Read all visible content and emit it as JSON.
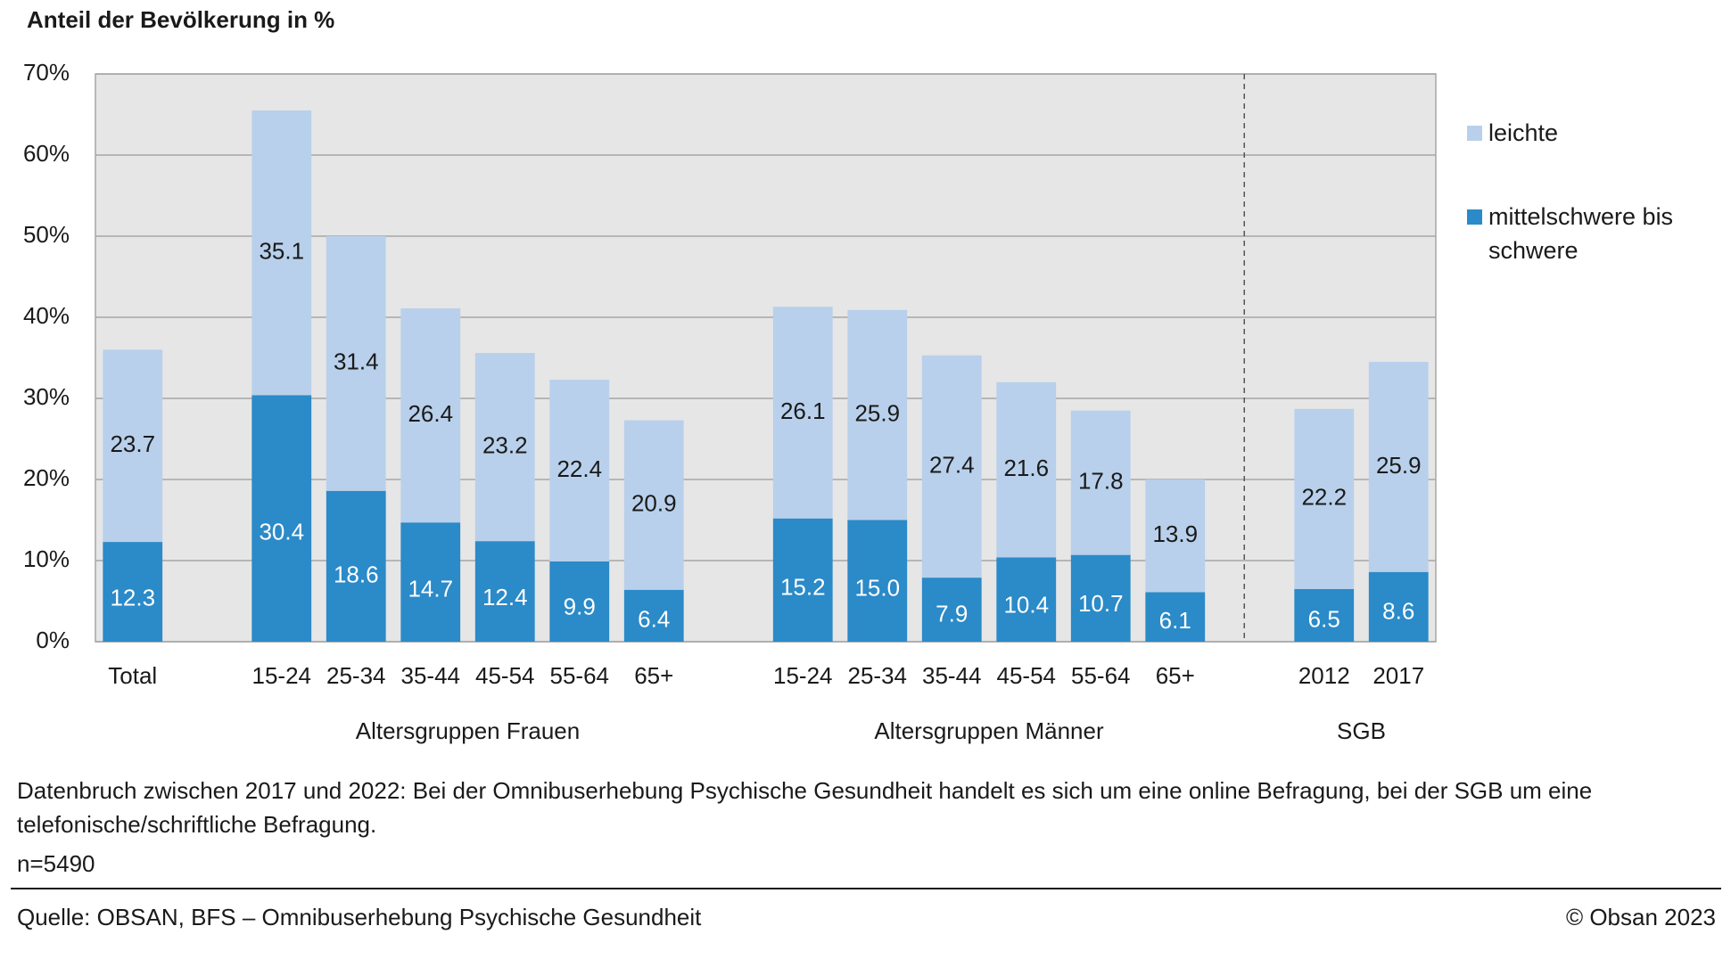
{
  "chart_data": {
    "type": "stacked-bar",
    "title": "Anteil der Bevölkerung in %",
    "categories": [
      "Total",
      null,
      "15-24",
      "25-34",
      "35-44",
      "45-54",
      "55-64",
      "65+",
      null,
      "15-24",
      "25-34",
      "35-44",
      "45-54",
      "55-64",
      "65+",
      null,
      "2012",
      "2017"
    ],
    "group_labels": [
      null,
      "Altersgruppen Frauen",
      "Altersgruppen Männer",
      "SGB"
    ],
    "series": [
      {
        "name": "mittelschwere bis schwere",
        "color": "#2b8ac8",
        "label_color": "#ffffff",
        "values": [
          12.3,
          null,
          30.4,
          18.6,
          14.7,
          12.4,
          9.9,
          6.4,
          null,
          15.2,
          15.0,
          7.9,
          10.4,
          10.7,
          6.1,
          null,
          6.5,
          8.6
        ],
        "value_labels": [
          "12.3",
          null,
          "30.4",
          "18.6",
          "14.7",
          "12.4",
          "9.9",
          "6.4",
          null,
          "15.2",
          "15.0",
          "7.9",
          "10.4",
          "10.7",
          "6.1",
          null,
          "6.5",
          "8.6"
        ]
      },
      {
        "name": "leichte",
        "color": "#b8d0eb",
        "label_color": "#1a1a1a",
        "values": [
          23.7,
          null,
          35.1,
          31.4,
          26.4,
          23.2,
          22.4,
          20.9,
          null,
          26.1,
          25.9,
          27.4,
          21.6,
          17.8,
          13.9,
          null,
          22.2,
          25.9
        ],
        "value_labels": [
          "23.7",
          null,
          "35.1",
          "31.4",
          "26.4",
          "23.2",
          "22.4",
          "20.9",
          null,
          "26.1",
          "25.9",
          "27.4",
          "21.6",
          "17.8",
          "13.9",
          null,
          "22.2",
          "25.9"
        ]
      }
    ],
    "ylim": [
      0,
      70
    ],
    "yticks": [
      {
        "value": 0,
        "label": "0%"
      },
      {
        "value": 10,
        "label": "10%"
      },
      {
        "value": 20,
        "label": "20%"
      },
      {
        "value": 30,
        "label": "30%"
      },
      {
        "value": 40,
        "label": "40%"
      },
      {
        "value": 50,
        "label": "50%"
      },
      {
        "value": 60,
        "label": "60%"
      },
      {
        "value": 70,
        "label": "70%"
      }
    ],
    "grid": true,
    "legend": "right"
  },
  "notes": [
    "Datenbruch zwischen 2017 und 2022: Bei der Omnibuserhebung Psychische Gesundheit handelt es sich um eine online Befragung, bei der SGB um eine telefonische/schriftliche Befragung.",
    "n=5490"
  ],
  "footer": {
    "source": "Quelle: OBSAN, BFS – Omnibuserhebung Psychische Gesundheit",
    "copyright": "© Obsan 2023"
  }
}
